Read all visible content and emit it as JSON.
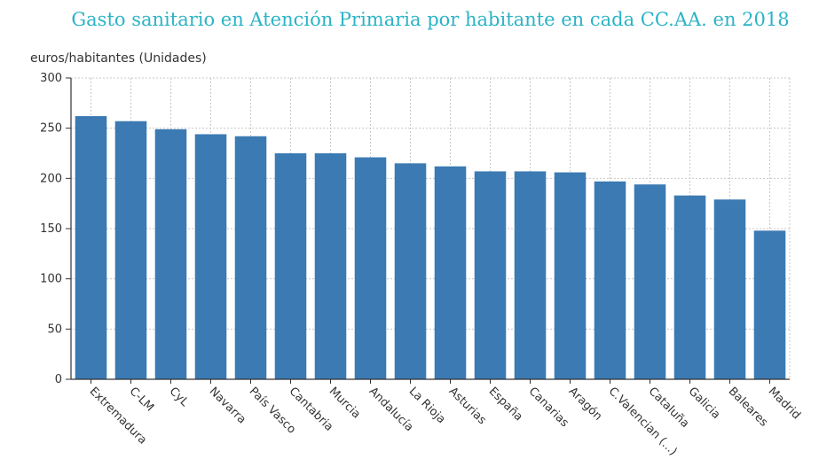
{
  "chart_data": {
    "type": "bar",
    "title": "Gasto sanitario en Atención Primaria por habitante en cada CC.AA. en 2018",
    "ylabel": "euros/habitantes (Unidades)",
    "xlabel": "",
    "ylim": [
      0,
      300
    ],
    "yticks": [
      0,
      50,
      100,
      150,
      200,
      250,
      300
    ],
    "grid": true,
    "bar_color": "#3b7ab3",
    "categories": [
      "Extremadura",
      "C-LM",
      "CyL",
      "Navarra",
      "País Vasco",
      "Cantabria",
      "Murcia",
      "Andalucía",
      "La Rioja",
      "Asturias",
      "España",
      "Canarias",
      "Aragón",
      "C.Valencian (...)",
      "Cataluña",
      "Galicia",
      "Baleares",
      "Madrid"
    ],
    "values": [
      262,
      257,
      249,
      244,
      242,
      225,
      225,
      221,
      215,
      212,
      207,
      207,
      206,
      197,
      194,
      183,
      179,
      148
    ]
  }
}
